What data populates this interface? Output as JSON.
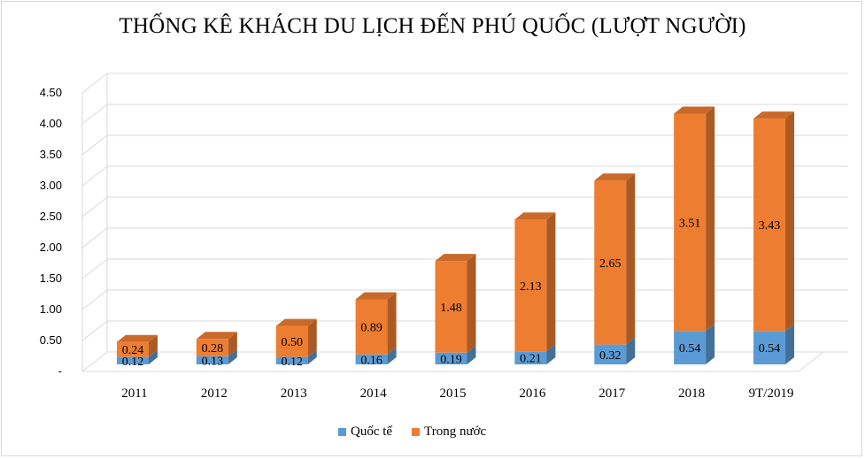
{
  "chart_data": {
    "type": "bar",
    "stacked": true,
    "title": "THỐNG KÊ KHÁCH DU LỊCH ĐẾN PHÚ QUỐC (LƯỢT NGƯỜI)",
    "categories": [
      "2011",
      "2012",
      "2013",
      "2014",
      "2015",
      "2016",
      "2017",
      "2018",
      "9T/2019"
    ],
    "series": [
      {
        "name": "Quốc tế",
        "values": [
          0.12,
          0.13,
          0.12,
          0.16,
          0.19,
          0.21,
          0.32,
          0.54,
          0.54
        ],
        "labels": [
          "0.12",
          "0.13",
          "0.12",
          "0.16",
          "0.19",
          "0.21",
          "0.32",
          "0.54",
          "0.54"
        ],
        "color": "#5b9bd5"
      },
      {
        "name": "Trong nước",
        "values": [
          0.24,
          0.28,
          0.5,
          0.89,
          1.48,
          2.13,
          2.65,
          3.51,
          3.43
        ],
        "labels": [
          "0.24",
          "0.28",
          "0.50",
          "0.89",
          "1.48",
          "2.13",
          "2.65",
          "3.51",
          "3.43"
        ],
        "color": "#ed7d31"
      }
    ],
    "yticks": [
      "-",
      "0.50",
      "1.00",
      "1.50",
      "2.00",
      "2.50",
      "3.00",
      "3.50",
      "4.00",
      "4.50"
    ],
    "ylim": [
      0,
      4.5
    ],
    "grid": true,
    "three_d": true,
    "legend": "bottom"
  }
}
